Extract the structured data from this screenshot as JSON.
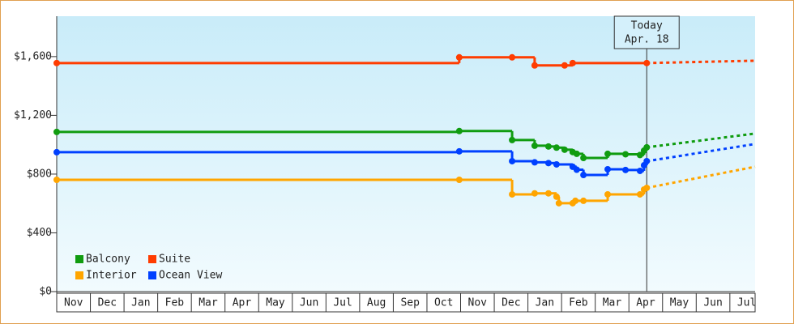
{
  "chart_data": {
    "type": "step-line",
    "xlim": [
      0,
      20.75
    ],
    "ylim": [
      0,
      1875
    ],
    "xticks": [
      {
        "value": 0.5,
        "label": "Nov"
      },
      {
        "value": 1.5,
        "label": "Dec"
      },
      {
        "value": 2.5,
        "label": "Jan"
      },
      {
        "value": 3.5,
        "label": "Feb"
      },
      {
        "value": 4.5,
        "label": "Mar"
      },
      {
        "value": 5.5,
        "label": "Apr"
      },
      {
        "value": 6.5,
        "label": "May"
      },
      {
        "value": 7.5,
        "label": "Jun"
      },
      {
        "value": 8.5,
        "label": "Jul"
      },
      {
        "value": 9.5,
        "label": "Aug"
      },
      {
        "value": 10.5,
        "label": "Sep"
      },
      {
        "value": 11.5,
        "label": "Oct"
      },
      {
        "value": 12.5,
        "label": "Nov"
      },
      {
        "value": 13.5,
        "label": "Dec"
      },
      {
        "value": 14.5,
        "label": "Jan"
      },
      {
        "value": 15.5,
        "label": "Feb"
      },
      {
        "value": 16.5,
        "label": "Mar"
      },
      {
        "value": 17.5,
        "label": "Apr"
      },
      {
        "value": 18.5,
        "label": "May"
      },
      {
        "value": 19.5,
        "label": "Jun"
      },
      {
        "value": 20.5,
        "label": "Jul"
      }
    ],
    "yticks": [
      {
        "value": 0,
        "label": "$0"
      },
      {
        "value": 400,
        "label": "$400"
      },
      {
        "value": 800,
        "label": "$800"
      },
      {
        "value": 1200,
        "label": "$1,200"
      },
      {
        "value": 1600,
        "label": "$1,600"
      }
    ],
    "annotation": {
      "x": 17.53,
      "lines": [
        "Today",
        "Apr. 18"
      ]
    },
    "series": [
      {
        "name": "Balcony",
        "color": "#109c10",
        "x": [
          0,
          11.96,
          13.53,
          14.2,
          14.61,
          14.85,
          15.09,
          15.33,
          15.45,
          15.65,
          16.37,
          16.9,
          17.33,
          17.45,
          17.53
        ],
        "values": [
          1087,
          1093,
          1032,
          993,
          988,
          980,
          966,
          950,
          938,
          910,
          938,
          935,
          930,
          960,
          982
        ],
        "projection": {
          "x": [
            17.53,
            20.75
          ],
          "values": [
            982,
            1076
          ]
        }
      },
      {
        "name": "Suite",
        "color": "#ff3c00",
        "x": [
          0,
          11.96,
          13.53,
          14.2,
          15.09,
          15.33,
          17.53
        ],
        "values": [
          1556,
          1595,
          1595,
          1540,
          1540,
          1556,
          1556
        ],
        "projection": {
          "x": [
            17.53,
            20.75
          ],
          "values": [
            1556,
            1572
          ]
        }
      },
      {
        "name": "Interior",
        "color": "#ffa500",
        "x": [
          0,
          11.96,
          13.53,
          14.2,
          14.61,
          14.85,
          14.92,
          15.33,
          15.41,
          15.65,
          16.37,
          17.33,
          17.45,
          17.53
        ],
        "values": [
          761,
          761,
          662,
          669,
          669,
          646,
          602,
          602,
          618,
          618,
          662,
          662,
          695,
          706
        ],
        "projection": {
          "x": [
            17.53,
            20.75
          ],
          "values": [
            706,
            850
          ]
        }
      },
      {
        "name": "Ocean View",
        "color": "#0040ff",
        "x": [
          0,
          11.96,
          13.53,
          14.2,
          14.61,
          14.85,
          15.33,
          15.45,
          15.65,
          16.37,
          16.9,
          17.33,
          17.45,
          17.53
        ],
        "values": [
          949,
          955,
          888,
          880,
          875,
          866,
          850,
          830,
          794,
          833,
          828,
          822,
          860,
          888
        ],
        "projection": {
          "x": [
            17.53,
            20.75
          ],
          "values": [
            888,
            1005
          ]
        }
      }
    ]
  }
}
